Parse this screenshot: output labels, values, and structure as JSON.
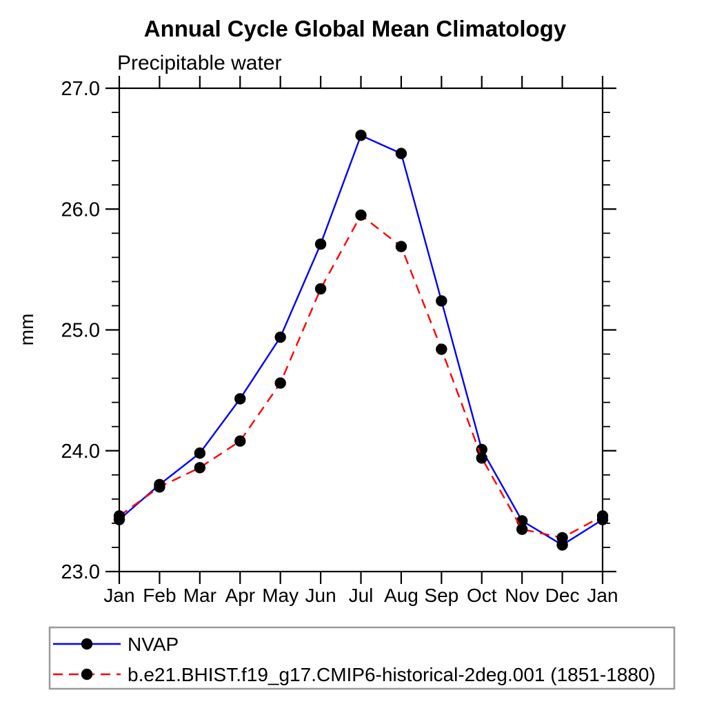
{
  "title": "Annual Cycle Global Mean Climatology",
  "subtitle": "Precipitable water",
  "ylabel": "mm",
  "colors": {
    "axis": "#000000",
    "marker": "#000000",
    "nvap_line": "#0000ff",
    "model_line": "#ff0000",
    "legend_border": "#999999",
    "background": "#ffffff"
  },
  "chart_data": {
    "type": "line",
    "title": "Annual Cycle Global Mean Climatology",
    "subtitle": "Precipitable water",
    "xlabel": "",
    "ylabel": "mm",
    "categories": [
      "Jan",
      "Feb",
      "Mar",
      "Apr",
      "May",
      "Jun",
      "Jul",
      "Aug",
      "Sep",
      "Oct",
      "Nov",
      "Dec",
      "Jan"
    ],
    "ylim": [
      23.0,
      27.0
    ],
    "ytick_labels": [
      "23.0",
      "24.0",
      "25.0",
      "26.0",
      "27.0"
    ],
    "yticks": [
      23.0,
      24.0,
      25.0,
      26.0,
      27.0
    ],
    "y_minor_step": 0.2,
    "grid": false,
    "legend_position": "bottom",
    "series": [
      {
        "name": "NVAP",
        "color": "#0000ff",
        "line_style": "solid",
        "marker": "filled-circle",
        "marker_color": "#000000",
        "values": [
          23.43,
          23.72,
          23.98,
          24.43,
          24.94,
          25.71,
          26.61,
          26.46,
          25.24,
          24.01,
          23.42,
          23.22,
          23.43
        ]
      },
      {
        "name": "b.e21.BHIST.f19_g17.CMIP6-historical-2deg.001 (1851-1880)",
        "color": "#ff0000",
        "line_style": "dashed",
        "marker": "filled-circle",
        "marker_color": "#000000",
        "values": [
          23.46,
          23.7,
          23.86,
          24.08,
          24.56,
          25.34,
          25.95,
          25.69,
          24.84,
          23.94,
          23.35,
          23.28,
          23.46
        ]
      }
    ]
  }
}
